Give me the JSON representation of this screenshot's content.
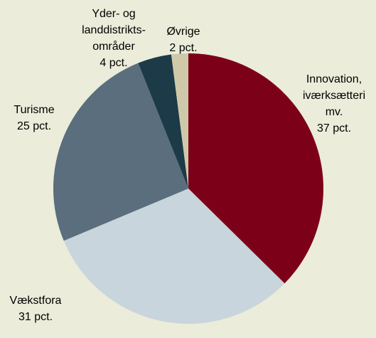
{
  "chart_data": {
    "type": "pie",
    "categories": [
      "Innovation,\niværksætteri\nmv.",
      "Vækstfora",
      "Turisme",
      "Yder- og\nlanddistrikts-\nområder",
      "Øvrige"
    ],
    "values": [
      37,
      31,
      25,
      4,
      2
    ],
    "value_labels": [
      "37 pct.",
      "31 pct.",
      "25 pct.",
      "4 pct.",
      "2 pct."
    ],
    "colors": [
      "#7d0019",
      "#c9d5dc",
      "#5a6e7d",
      "#1c3a47",
      "#cfc9a9"
    ]
  }
}
